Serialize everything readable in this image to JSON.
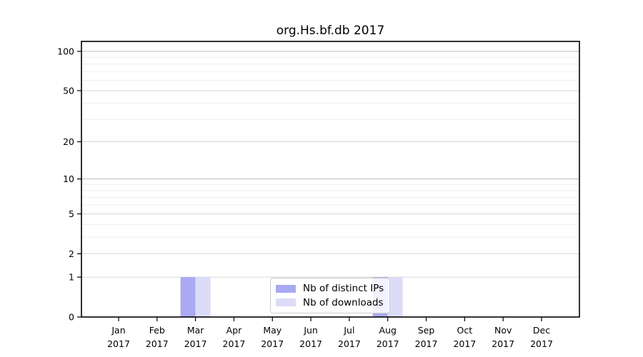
{
  "chart_data": {
    "type": "bar",
    "title": "org.Hs.bf.db 2017",
    "categories": [
      {
        "month": "Jan",
        "year": "2017"
      },
      {
        "month": "Feb",
        "year": "2017"
      },
      {
        "month": "Mar",
        "year": "2017"
      },
      {
        "month": "Apr",
        "year": "2017"
      },
      {
        "month": "May",
        "year": "2017"
      },
      {
        "month": "Jun",
        "year": "2017"
      },
      {
        "month": "Jul",
        "year": "2017"
      },
      {
        "month": "Aug",
        "year": "2017"
      },
      {
        "month": "Sep",
        "year": "2017"
      },
      {
        "month": "Oct",
        "year": "2017"
      },
      {
        "month": "Nov",
        "year": "2017"
      },
      {
        "month": "Dec",
        "year": "2017"
      }
    ],
    "series": [
      {
        "name": "Nb of distinct IPs",
        "color": "#a9a9f4",
        "values": [
          0,
          0,
          1,
          0,
          0,
          0,
          0,
          1,
          0,
          0,
          0,
          0
        ]
      },
      {
        "name": "Nb of downloads",
        "color": "#dcdcf8",
        "values": [
          0,
          0,
          1,
          0,
          0,
          0,
          0,
          1,
          0,
          0,
          0,
          0
        ]
      }
    ],
    "xlabel": "",
    "ylabel": "",
    "yscale": "log1p",
    "ylim": [
      0,
      119
    ],
    "yticks_major": [
      0,
      1,
      2,
      5,
      10,
      20,
      50,
      100
    ],
    "yticks_minor": [
      3,
      4,
      6,
      7,
      8,
      9,
      30,
      40,
      60,
      70,
      80,
      90
    ],
    "grid": "on",
    "legend_position": "lower-center-inside"
  },
  "colors": {
    "axis": "#000000",
    "grid_decade": "#bbbbbb",
    "grid_major": "#d6d6d6",
    "grid_minor": "#ededed",
    "legend_border": "#cccccc"
  }
}
